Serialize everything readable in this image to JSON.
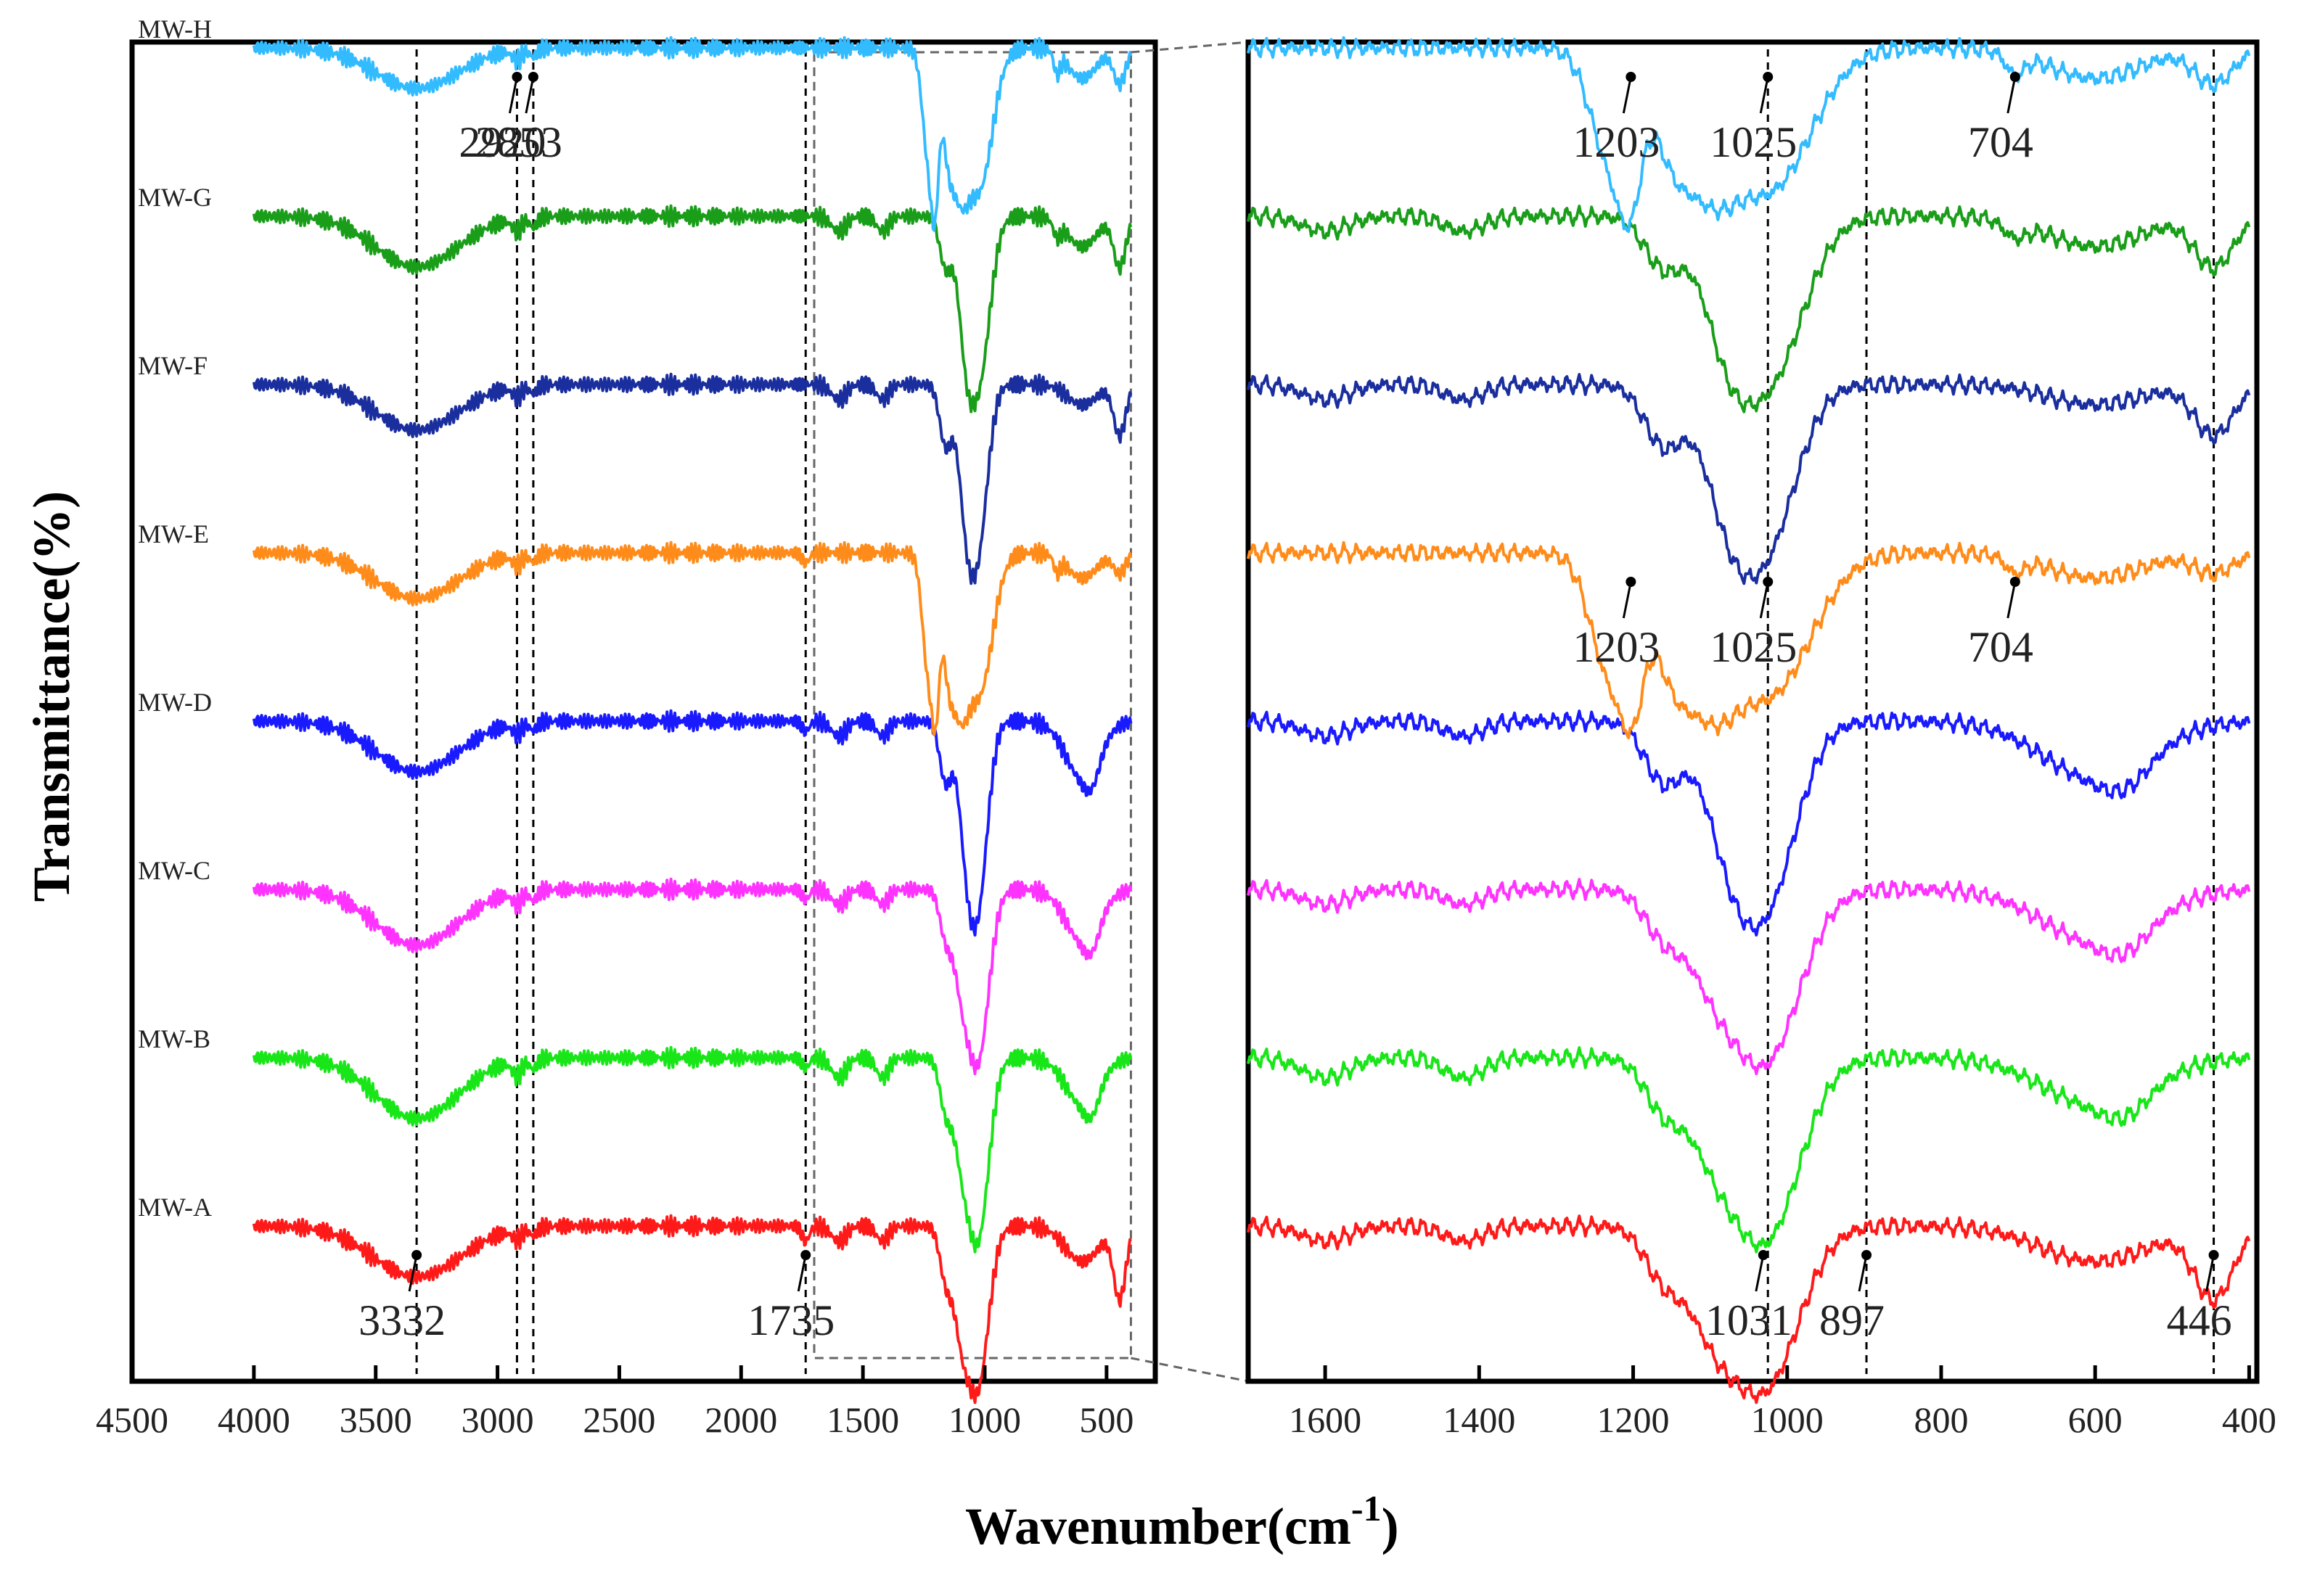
{
  "chart_data": {
    "type": "line",
    "xlabel": "Wavenumber(cm",
    "xlabel_superscript": "-1",
    "xlabel_close": ")",
    "ylabel": "Transmittance(%)",
    "series_order_bottom_to_top": [
      "MW-A",
      "MW-B",
      "MW-C",
      "MW-D",
      "MW-E",
      "MW-F",
      "MW-G",
      "MW-H"
    ],
    "colors": {
      "MW-A": "#ff1a1a",
      "MW-B": "#19e619",
      "MW-C": "#ff33ff",
      "MW-D": "#1a1aff",
      "MW-E": "#ff8c1a",
      "MW-F": "#1a2e9e",
      "MW-G": "#1a9e1a",
      "MW-H": "#33bbff"
    },
    "left_panel": {
      "xlim": [
        4500,
        300
      ],
      "x_ticks": [
        4500,
        4000,
        3500,
        3000,
        2500,
        2000,
        1500,
        1000,
        500
      ],
      "data_range": [
        4000,
        400
      ],
      "vlines": [
        3332,
        2920,
        2853,
        1735
      ],
      "zoom_box_x": [
        1700,
        400
      ],
      "annotations": [
        {
          "text": "2920",
          "x": 2920,
          "series": "MW-H"
        },
        {
          "text": "2853",
          "x": 2853,
          "series": "MW-H"
        },
        {
          "text": "3332",
          "x": 3332,
          "series": "MW-A"
        },
        {
          "text": "1735",
          "x": 1735,
          "series": "MW-A"
        }
      ]
    },
    "right_panel": {
      "xlim": [
        1700,
        390
      ],
      "x_ticks": [
        1600,
        1400,
        1200,
        1000,
        800,
        600,
        400
      ],
      "data_range": [
        1700,
        400
      ],
      "vlines": [
        1025,
        897,
        446
      ],
      "annotations": [
        {
          "text": "1203",
          "x": 1203,
          "series": "MW-H"
        },
        {
          "text": "1025",
          "x": 1025,
          "series": "MW-H"
        },
        {
          "text": "704",
          "x": 704,
          "series": "MW-H"
        },
        {
          "text": "1203",
          "x": 1203,
          "series": "MW-E"
        },
        {
          "text": "1025",
          "x": 1025,
          "series": "MW-E"
        },
        {
          "text": "704",
          "x": 704,
          "series": "MW-E"
        },
        {
          "text": "1031",
          "x": 1031,
          "series": "MW-A"
        },
        {
          "text": "897",
          "x": 897,
          "series": "MW-A"
        },
        {
          "text": "446",
          "x": 446,
          "series": "MW-A"
        }
      ]
    },
    "series": [
      {
        "name": "MW-A",
        "bands": [
          {
            "c": 3332,
            "w": 180,
            "d": 0.5
          },
          {
            "c": 2920,
            "w": 20,
            "d": 0.1
          },
          {
            "c": 2853,
            "w": 15,
            "d": 0.08
          },
          {
            "c": 1735,
            "w": 15,
            "d": 0.15
          },
          {
            "c": 1600,
            "w": 30,
            "d": 0.15
          },
          {
            "c": 1420,
            "w": 25,
            "d": 0.15
          },
          {
            "c": 1160,
            "w": 25,
            "d": 0.5
          },
          {
            "c": 1100,
            "w": 30,
            "d": 0.7
          },
          {
            "c": 1031,
            "w": 45,
            "d": 1.6
          },
          {
            "c": 600,
            "w": 70,
            "d": 0.35
          },
          {
            "c": 446,
            "w": 25,
            "d": 0.7
          }
        ]
      },
      {
        "name": "MW-B",
        "bands": [
          {
            "c": 3332,
            "w": 170,
            "d": 0.6
          },
          {
            "c": 2920,
            "w": 20,
            "d": 0.15
          },
          {
            "c": 2853,
            "w": 15,
            "d": 0.1
          },
          {
            "c": 1735,
            "w": 15,
            "d": 0.1
          },
          {
            "c": 1600,
            "w": 30,
            "d": 0.2
          },
          {
            "c": 1420,
            "w": 25,
            "d": 0.2
          },
          {
            "c": 1160,
            "w": 25,
            "d": 0.5
          },
          {
            "c": 1100,
            "w": 30,
            "d": 0.6
          },
          {
            "c": 1030,
            "w": 45,
            "d": 1.8
          },
          {
            "c": 600,
            "w": 70,
            "d": 0.45
          },
          {
            "c": 560,
            "w": 30,
            "d": 0.2
          }
        ]
      },
      {
        "name": "MW-C",
        "bands": [
          {
            "c": 3332,
            "w": 170,
            "d": 0.55
          },
          {
            "c": 2920,
            "w": 20,
            "d": 0.12
          },
          {
            "c": 2853,
            "w": 15,
            "d": 0.1
          },
          {
            "c": 1735,
            "w": 15,
            "d": 0.1
          },
          {
            "c": 1600,
            "w": 30,
            "d": 0.15
          },
          {
            "c": 1420,
            "w": 25,
            "d": 0.15
          },
          {
            "c": 1160,
            "w": 25,
            "d": 0.45
          },
          {
            "c": 1100,
            "w": 30,
            "d": 0.6
          },
          {
            "c": 1030,
            "w": 45,
            "d": 1.7
          },
          {
            "c": 600,
            "w": 70,
            "d": 0.5
          },
          {
            "c": 560,
            "w": 30,
            "d": 0.2
          }
        ]
      },
      {
        "name": "MW-D",
        "bands": [
          {
            "c": 3332,
            "w": 170,
            "d": 0.5
          },
          {
            "c": 2920,
            "w": 20,
            "d": 0.1
          },
          {
            "c": 2853,
            "w": 15,
            "d": 0.08
          },
          {
            "c": 1735,
            "w": 15,
            "d": 0.1
          },
          {
            "c": 1600,
            "w": 30,
            "d": 0.15
          },
          {
            "c": 1420,
            "w": 25,
            "d": 0.15
          },
          {
            "c": 1160,
            "w": 25,
            "d": 0.6
          },
          {
            "c": 1080,
            "w": 30,
            "d": 0.7
          },
          {
            "c": 1030,
            "w": 40,
            "d": 1.8
          },
          {
            "c": 600,
            "w": 70,
            "d": 0.55
          },
          {
            "c": 560,
            "w": 30,
            "d": 0.2
          }
        ]
      },
      {
        "name": "MW-E",
        "bands": [
          {
            "c": 3332,
            "w": 170,
            "d": 0.45
          },
          {
            "c": 2920,
            "w": 20,
            "d": 0.1
          },
          {
            "c": 2853,
            "w": 15,
            "d": 0.08
          },
          {
            "c": 1735,
            "w": 15,
            "d": 0.1
          },
          {
            "c": 1230,
            "w": 25,
            "d": 1.2
          },
          {
            "c": 1200,
            "w": 15,
            "d": 1.0
          },
          {
            "c": 1150,
            "w": 25,
            "d": 1.0
          },
          {
            "c": 1100,
            "w": 30,
            "d": 1.0
          },
          {
            "c": 1025,
            "w": 55,
            "d": 1.4
          },
          {
            "c": 704,
            "w": 12,
            "d": 0.15
          },
          {
            "c": 600,
            "w": 60,
            "d": 0.25
          },
          {
            "c": 446,
            "w": 25,
            "d": 0.2
          }
        ]
      },
      {
        "name": "MW-F",
        "bands": [
          {
            "c": 3332,
            "w": 170,
            "d": 0.45
          },
          {
            "c": 2920,
            "w": 20,
            "d": 0.1
          },
          {
            "c": 2853,
            "w": 15,
            "d": 0.08
          },
          {
            "c": 1600,
            "w": 30,
            "d": 0.15
          },
          {
            "c": 1420,
            "w": 25,
            "d": 0.15
          },
          {
            "c": 1160,
            "w": 25,
            "d": 0.6
          },
          {
            "c": 1080,
            "w": 30,
            "d": 0.8
          },
          {
            "c": 1030,
            "w": 40,
            "d": 1.6
          },
          {
            "c": 600,
            "w": 60,
            "d": 0.2
          },
          {
            "c": 446,
            "w": 25,
            "d": 0.5
          }
        ]
      },
      {
        "name": "MW-G",
        "bands": [
          {
            "c": 3332,
            "w": 170,
            "d": 0.5
          },
          {
            "c": 2920,
            "w": 20,
            "d": 0.12
          },
          {
            "c": 2853,
            "w": 15,
            "d": 0.1
          },
          {
            "c": 1600,
            "w": 30,
            "d": 0.15
          },
          {
            "c": 1420,
            "w": 25,
            "d": 0.15
          },
          {
            "c": 1160,
            "w": 25,
            "d": 0.5
          },
          {
            "c": 1080,
            "w": 30,
            "d": 0.8
          },
          {
            "c": 1025,
            "w": 45,
            "d": 1.6
          },
          {
            "c": 704,
            "w": 15,
            "d": 0.15
          },
          {
            "c": 600,
            "w": 60,
            "d": 0.3
          },
          {
            "c": 446,
            "w": 25,
            "d": 0.5
          }
        ]
      },
      {
        "name": "MW-H",
        "bands": [
          {
            "c": 3332,
            "w": 170,
            "d": 0.4
          },
          {
            "c": 2920,
            "w": 20,
            "d": 0.1
          },
          {
            "c": 2853,
            "w": 15,
            "d": 0.08
          },
          {
            "c": 1230,
            "w": 25,
            "d": 1.1
          },
          {
            "c": 1203,
            "w": 15,
            "d": 1.0
          },
          {
            "c": 1150,
            "w": 25,
            "d": 0.9
          },
          {
            "c": 1100,
            "w": 30,
            "d": 0.9
          },
          {
            "c": 1025,
            "w": 55,
            "d": 1.4
          },
          {
            "c": 704,
            "w": 12,
            "d": 0.2
          },
          {
            "c": 600,
            "w": 60,
            "d": 0.3
          },
          {
            "c": 446,
            "w": 25,
            "d": 0.35
          }
        ]
      }
    ]
  }
}
